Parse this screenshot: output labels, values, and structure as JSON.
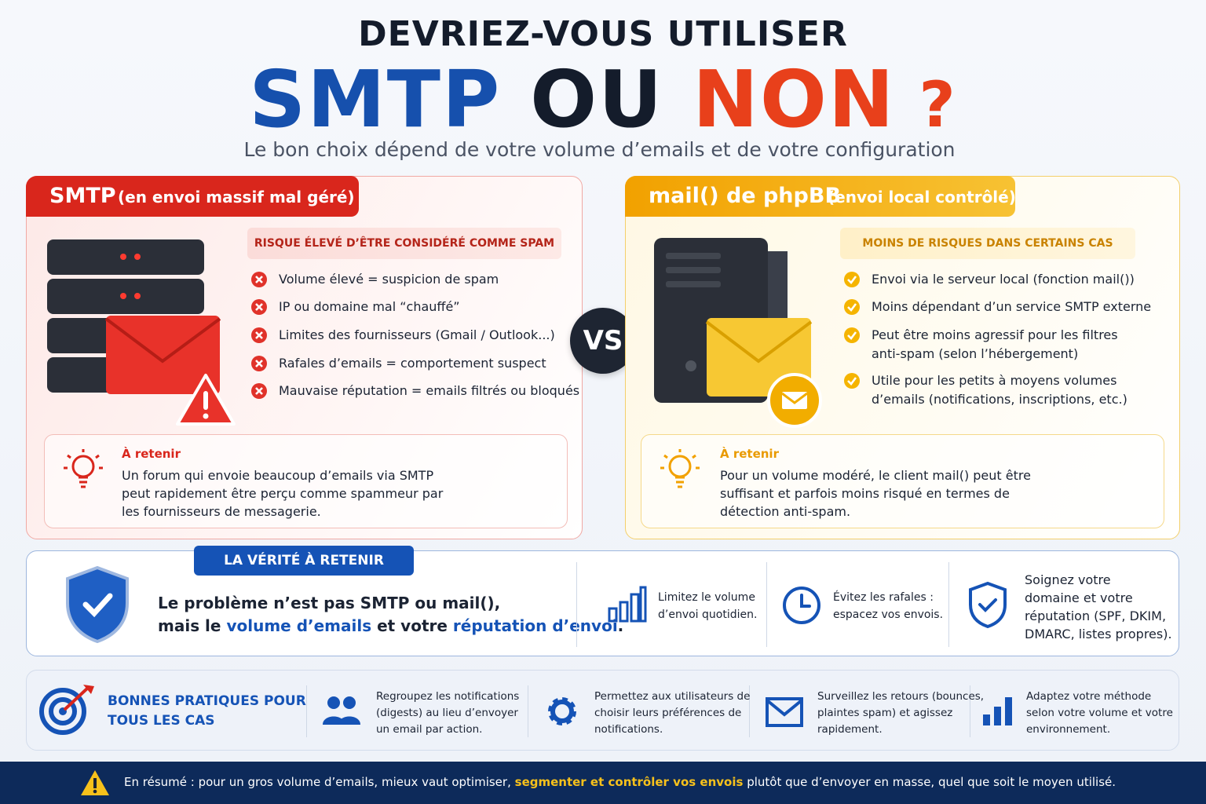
{
  "header": {
    "kicker": "DEVRIEZ-VOUS UTILISER",
    "title_parts": [
      "SMTP",
      "OU",
      "NON",
      "?"
    ],
    "subtitle": "Le bon choix dépend de votre volume d’emails et de votre configuration"
  },
  "panels": [
    {
      "title": "SMTP",
      "title_note": "(en envoi massif mal géré)",
      "risk": "RISQUE ÉLEVÉ D’ÊTRE CONSIDÉRÉ COMME SPAM",
      "items": [
        [
          "Volume élevé = suspicion de spam"
        ],
        [
          "IP ou domaine mal “chauffé”"
        ],
        [
          "Limites des fournisseurs (Gmail / Outlook...)"
        ],
        [
          "Rafales d’emails = comportement suspect"
        ],
        [
          "Mauvaise réputation = emails filtrés ou bloqués"
        ]
      ],
      "tip_title": "À retenir",
      "tip_lines": [
        "Un forum qui envoie beaucoup d’emails via SMTP",
        "peut rapidement être perçu comme spammeur par",
        "les fournisseurs de messagerie."
      ]
    },
    {
      "title": "mail() de phpBB",
      "title_note": "(envoi local contrôlé)",
      "risk": "MOINS DE RISQUES DANS CERTAINS CAS",
      "items": [
        [
          "Envoi via le serveur local (fonction mail())"
        ],
        [
          "Moins dépendant d’un service SMTP externe"
        ],
        [
          "Peut être moins agressif pour les filtres",
          "anti-spam (selon l’hébergement)"
        ],
        [
          "Utile pour les petits à moyens volumes",
          "d’emails (notifications, inscriptions, etc.)"
        ]
      ],
      "tip_title": "À retenir",
      "tip_lines": [
        "Pour un volume modéré, le client mail() peut être",
        "suffisant et parfois moins risqué en termes de",
        "détection anti-spam."
      ]
    }
  ],
  "vs": "VS",
  "truth": {
    "badge": "LA VÉRITÉ À RETENIR",
    "line1": "Le problème n’est pas SMTP ou mail(),",
    "line2_parts": [
      "mais le",
      "volume d’emails",
      "et votre",
      "réputation d’envoi",
      "."
    ],
    "tips": [
      [
        "Limitez le volume",
        "d’envoi quotidien."
      ],
      [
        "Évitez les rafales :",
        "espacez vos envois."
      ],
      [
        "Soignez votre",
        "domaine et votre",
        "réputation (SPF, DKIM,",
        "DMARC, listes propres)."
      ]
    ]
  },
  "practices": {
    "title_lines": [
      "BONNES PRATIQUES POUR",
      "TOUS LES CAS"
    ],
    "items": [
      [
        "Regroupez les notifications",
        "(digests) au lieu d’envoyer",
        "un email par action."
      ],
      [
        "Permettez aux utilisateurs de",
        "choisir leurs préférences de",
        "notifications."
      ],
      [
        "Surveillez les retours (bounces,",
        "plaintes spam) et agissez",
        "rapidement."
      ],
      [
        "Adaptez votre méthode",
        "selon votre volume et votre",
        "environnement."
      ]
    ]
  },
  "footer": {
    "parts": [
      "En résumé : pour un gros volume d’emails, mieux vaut optimiser,",
      "segmenter et contrôler vos envois",
      "plutôt que d’envoyer en masse, quel que soit le moyen utilisé."
    ]
  }
}
